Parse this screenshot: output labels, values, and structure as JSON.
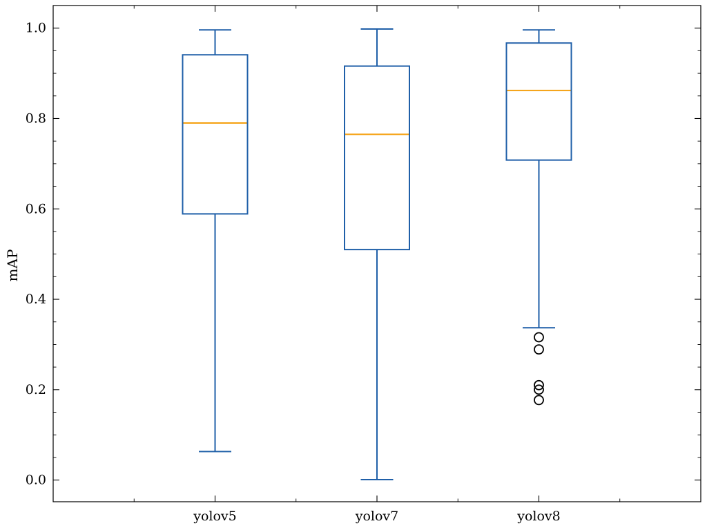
{
  "chart_data": {
    "type": "box",
    "title": "",
    "xlabel": "",
    "ylabel": "mAP",
    "ylim": [
      -0.048,
      1.05
    ],
    "yticks": [
      "0.0",
      "0.2",
      "0.4",
      "0.6",
      "0.8",
      "1.0"
    ],
    "grid": false,
    "categories": [
      "yolov5",
      "yolov7",
      "yolov8"
    ],
    "boxes": [
      {
        "name": "yolov5",
        "whisker_low": 0.063,
        "q1": 0.589,
        "median": 0.79,
        "q3": 0.941,
        "whisker_high": 0.996,
        "outliers": []
      },
      {
        "name": "yolov7",
        "whisker_low": 0.001,
        "q1": 0.51,
        "median": 0.765,
        "q3": 0.916,
        "whisker_high": 0.998,
        "outliers": []
      },
      {
        "name": "yolov8",
        "whisker_low": 0.337,
        "q1": 0.708,
        "median": 0.862,
        "q3": 0.967,
        "whisker_high": 0.996,
        "outliers": [
          0.316,
          0.289,
          0.21,
          0.2,
          0.177
        ]
      }
    ],
    "colors": {
      "box": "#1f5fa8",
      "median": "#f5a00f",
      "outlier": "#000000",
      "axis": "#000000"
    }
  }
}
